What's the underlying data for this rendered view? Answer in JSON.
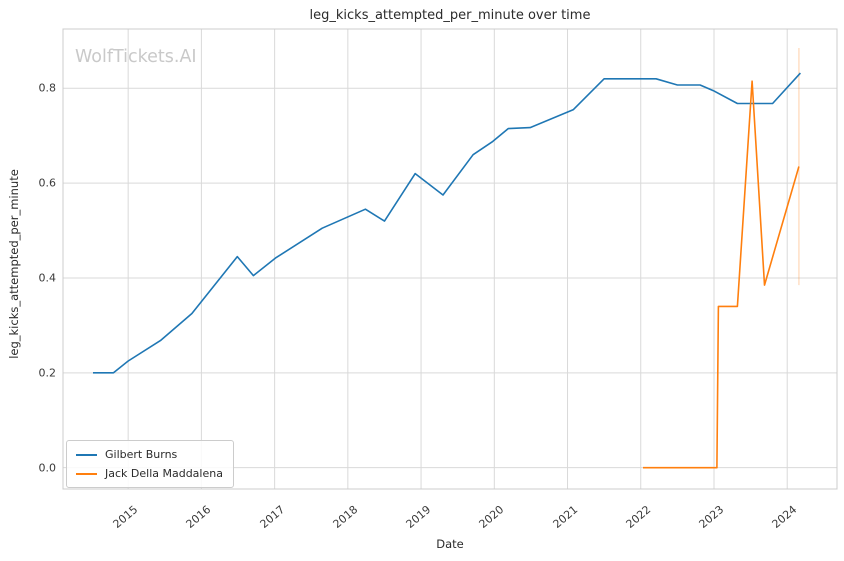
{
  "watermark": "WolfTickets.AI",
  "chart_data": {
    "type": "line",
    "title": "leg_kicks_attempted_per_minute over time",
    "xlabel": "Date",
    "ylabel": "leg_kicks_attempted_per_minute",
    "xlim": [
      2014.11,
      2024.68
    ],
    "ylim": [
      -0.045,
      0.925
    ],
    "x_ticks": [
      2015,
      2016,
      2017,
      2018,
      2019,
      2020,
      2021,
      2022,
      2023,
      2024
    ],
    "y_ticks": [
      0.0,
      0.2,
      0.4,
      0.6,
      0.8
    ],
    "grid": true,
    "grid_color": "#d9d9d9",
    "spine_color": "#cccccc",
    "legend_position": "lower left",
    "series": [
      {
        "name": "Gilbert Burns",
        "color": "#1f77b4",
        "x": [
          2014.52,
          2014.8,
          2015.0,
          2015.44,
          2015.87,
          2016.49,
          2016.71,
          2017.01,
          2017.65,
          2018.24,
          2018.5,
          2018.92,
          2019.3,
          2019.71,
          2019.98,
          2020.19,
          2020.49,
          2021.08,
          2021.5,
          2022.21,
          2022.5,
          2022.81,
          2022.99,
          2023.32,
          2023.8,
          2024.18
        ],
        "y": [
          0.2,
          0.2,
          0.225,
          0.268,
          0.325,
          0.445,
          0.405,
          0.442,
          0.505,
          0.545,
          0.52,
          0.62,
          0.575,
          0.66,
          0.688,
          0.715,
          0.717,
          0.755,
          0.82,
          0.82,
          0.807,
          0.807,
          0.795,
          0.768,
          0.768,
          0.832
        ]
      },
      {
        "name": "Jack Della Maddalena",
        "color": "#ff7f0e",
        "x": [
          2022.03,
          2023.04,
          2023.06,
          2023.32,
          2023.52,
          2023.69,
          2024.16
        ],
        "y": [
          0.0,
          0.0,
          0.34,
          0.34,
          0.815,
          0.385,
          0.635
        ]
      }
    ],
    "annotations": [
      {
        "type": "vline",
        "x": 2024.16,
        "y1": 0.385,
        "y2": 0.885,
        "color": "#ff7f0e",
        "opacity": 0.3
      }
    ]
  }
}
